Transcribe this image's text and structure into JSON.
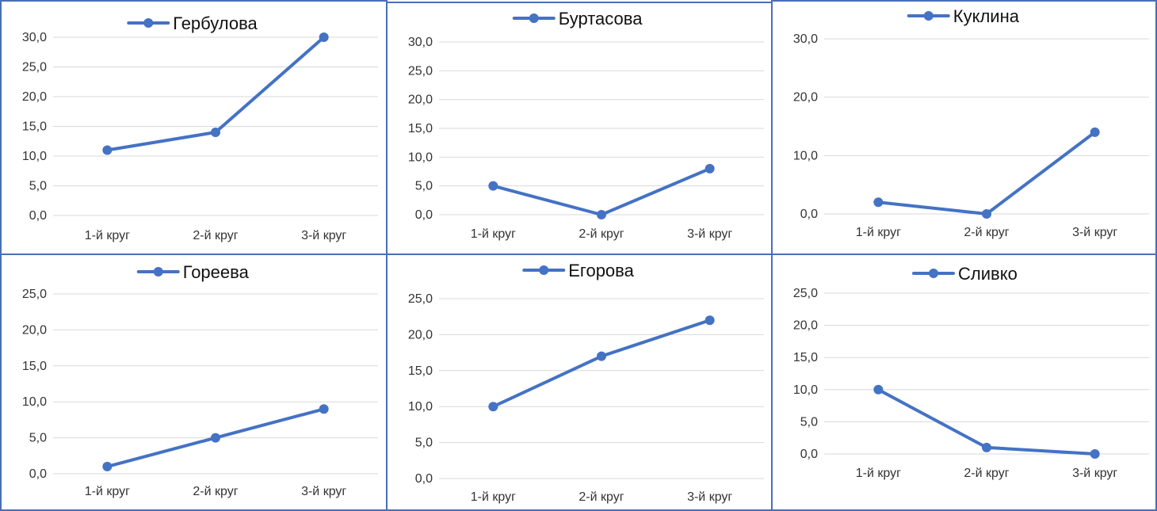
{
  "colors": {
    "series": "#4472c4",
    "grid": "#d9d9d9",
    "border": "#4a6fb5"
  },
  "chart_data": [
    {
      "type": "line",
      "categories": [
        "1-й круг",
        "2-й круг",
        "3-й круг"
      ],
      "series": [
        {
          "name": "Гербулова",
          "values": [
            11,
            14,
            30
          ]
        }
      ],
      "ylim": [
        0,
        30
      ],
      "yticks": [
        "0,0",
        "5,0",
        "10,0",
        "15,0",
        "20,0",
        "25,0",
        "30,0"
      ],
      "grid": true,
      "legend": "top"
    },
    {
      "type": "line",
      "categories": [
        "1-й круг",
        "2-й круг",
        "3-й круг"
      ],
      "series": [
        {
          "name": "Буртасова",
          "values": [
            5,
            0,
            8
          ]
        }
      ],
      "ylim": [
        0,
        30
      ],
      "yticks": [
        "0,0",
        "5,0",
        "10,0",
        "15,0",
        "20,0",
        "25,0",
        "30,0"
      ],
      "grid": true,
      "legend": "top"
    },
    {
      "type": "line",
      "categories": [
        "1-й круг",
        "2-й круг",
        "3-й круг"
      ],
      "series": [
        {
          "name": "Куклина",
          "values": [
            2,
            0,
            14
          ]
        }
      ],
      "ylim": [
        0,
        30
      ],
      "yticks": [
        "0,0",
        "10,0",
        "20,0",
        "30,0"
      ],
      "grid": true,
      "legend": "top"
    },
    {
      "type": "line",
      "categories": [
        "1-й круг",
        "2-й круг",
        "3-й круг"
      ],
      "series": [
        {
          "name": "Гореева",
          "values": [
            1,
            5,
            9
          ]
        }
      ],
      "ylim": [
        0,
        25
      ],
      "yticks": [
        "0,0",
        "5,0",
        "10,0",
        "15,0",
        "20,0",
        "25,0"
      ],
      "grid": true,
      "legend": "top"
    },
    {
      "type": "line",
      "categories": [
        "1-й круг",
        "2-й круг",
        "3-й круг"
      ],
      "series": [
        {
          "name": "Егорова",
          "values": [
            10,
            17,
            22
          ]
        }
      ],
      "ylim": [
        0,
        25
      ],
      "yticks": [
        "0,0",
        "5,0",
        "10,0",
        "15,0",
        "20,0",
        "25,0"
      ],
      "grid": true,
      "legend": "top"
    },
    {
      "type": "line",
      "categories": [
        "1-й круг",
        "2-й круг",
        "3-й круг"
      ],
      "series": [
        {
          "name": "Сливко",
          "values": [
            10,
            1,
            0
          ]
        }
      ],
      "ylim": [
        0,
        25
      ],
      "yticks": [
        "0,0",
        "5,0",
        "10,0",
        "15,0",
        "20,0",
        "25,0"
      ],
      "grid": true,
      "legend": "top"
    }
  ]
}
